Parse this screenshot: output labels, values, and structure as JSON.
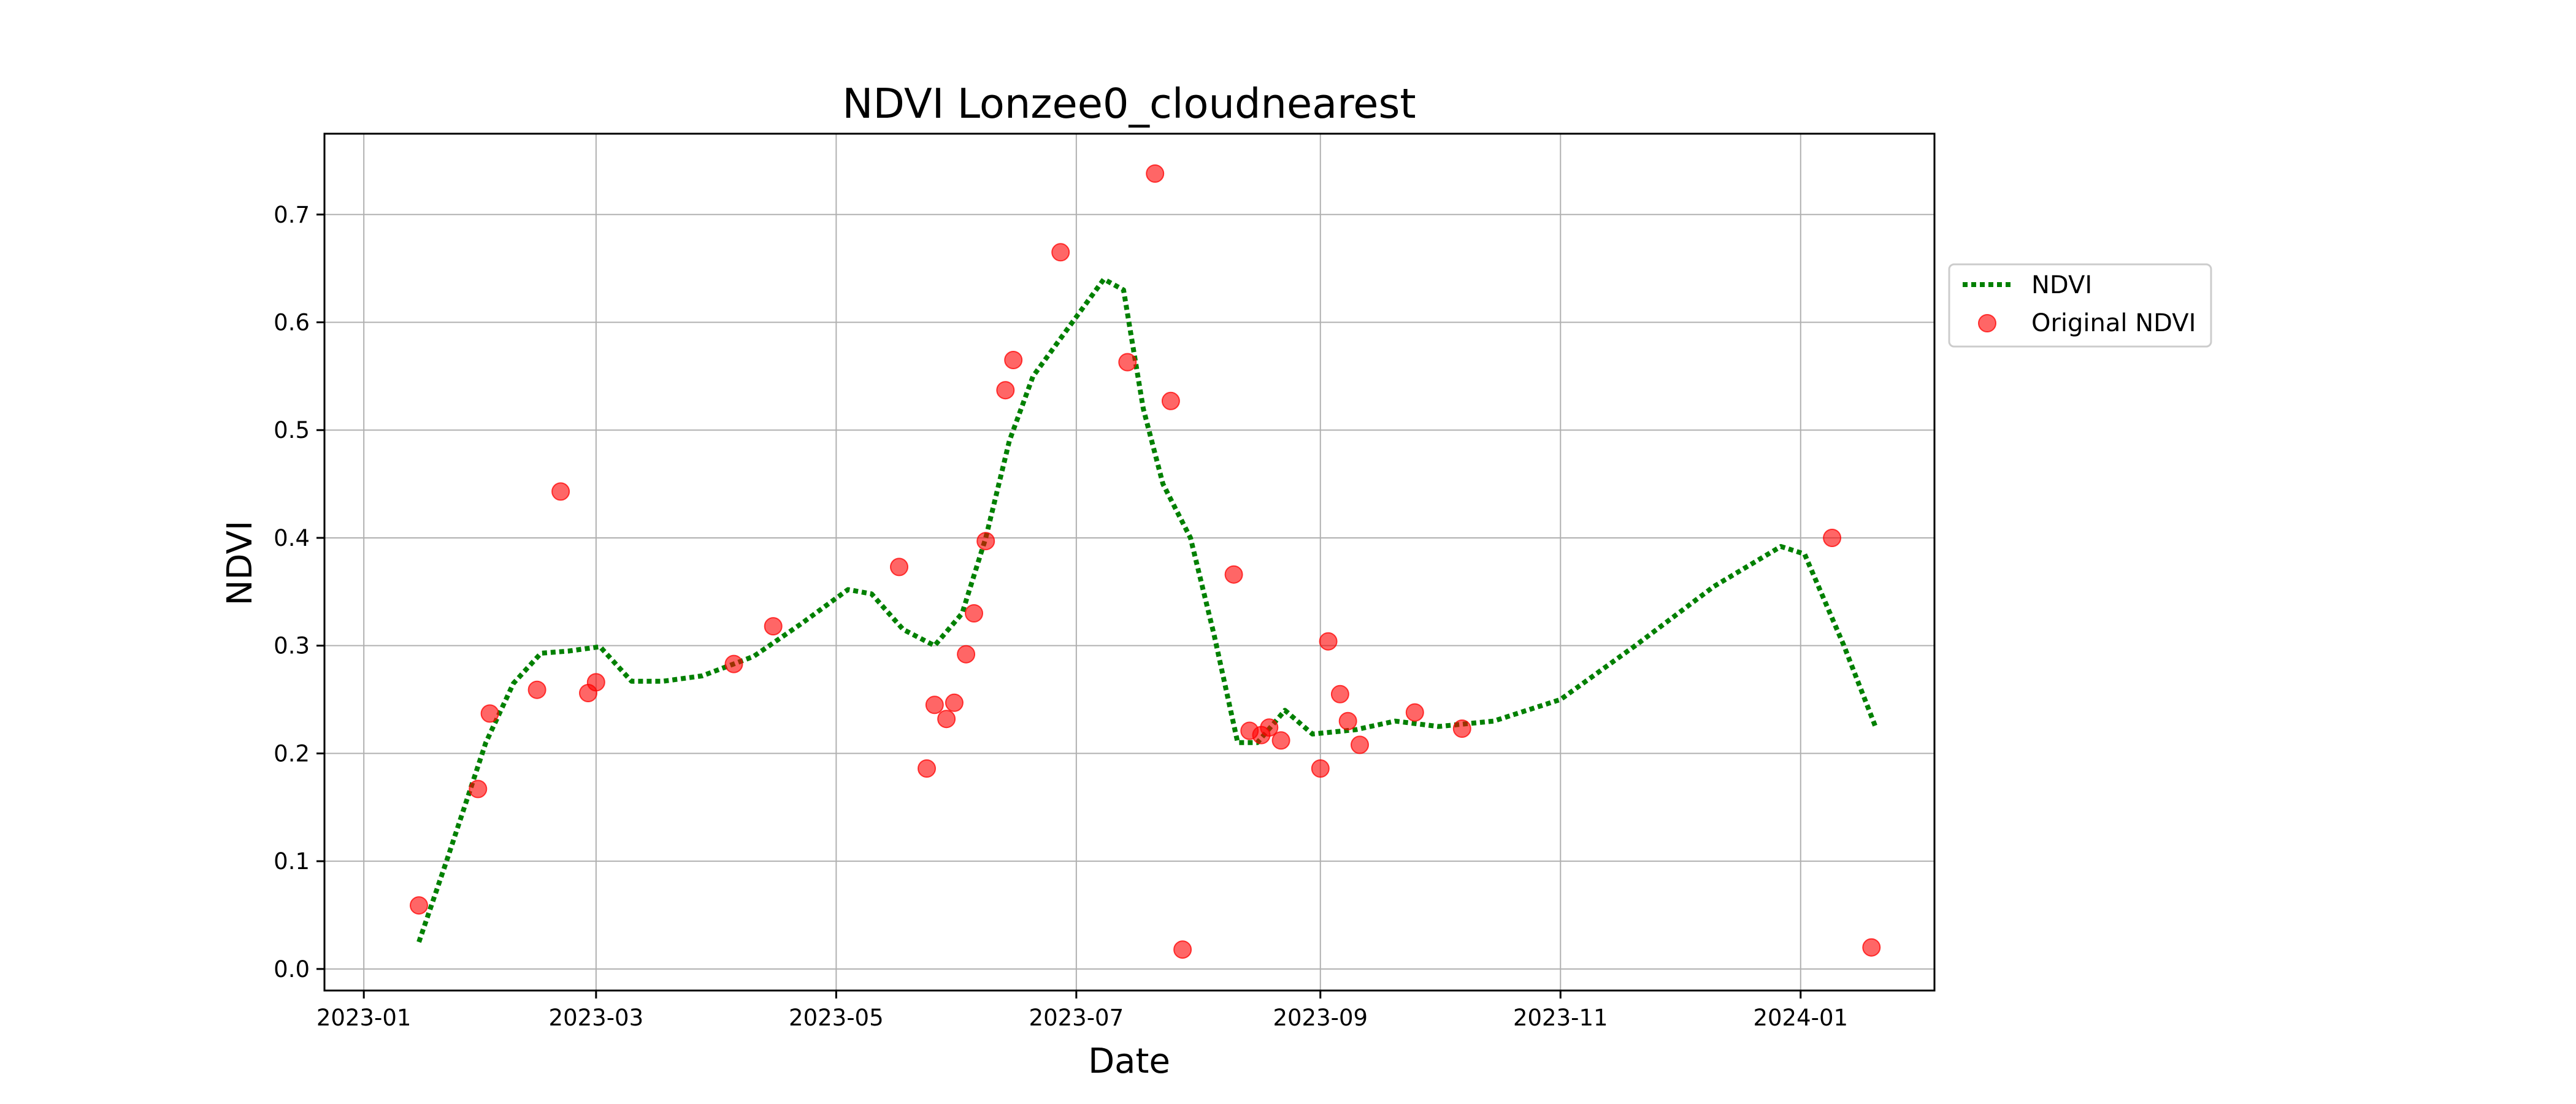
{
  "chart_data": {
    "type": "scatter",
    "title": "NDVI Lonzee0_cloudnearest",
    "xlabel": "Date",
    "ylabel": "NDVI",
    "xlim": [
      "2022-12-22",
      "2024-02-04"
    ],
    "ylim": [
      -0.02,
      0.775
    ],
    "x_ticks": [
      "2023-01",
      "2023-03",
      "2023-05",
      "2023-07",
      "2023-09",
      "2023-11",
      "2024-01"
    ],
    "y_ticks": [
      "0.0",
      "0.1",
      "0.2",
      "0.3",
      "0.4",
      "0.5",
      "0.6",
      "0.7"
    ],
    "grid": true,
    "legend_position": "right-outside",
    "series": [
      {
        "name": "NDVI",
        "kind": "line",
        "style": "dotted",
        "color": "#008000",
        "points": [
          [
            "2023-01-15",
            0.025
          ],
          [
            "2023-01-22",
            0.1
          ],
          [
            "2023-02-01",
            0.21
          ],
          [
            "2023-02-08",
            0.265
          ],
          [
            "2023-02-15",
            0.293
          ],
          [
            "2023-02-22",
            0.295
          ],
          [
            "2023-03-02",
            0.299
          ],
          [
            "2023-03-10",
            0.267
          ],
          [
            "2023-03-18",
            0.267
          ],
          [
            "2023-03-28",
            0.272
          ],
          [
            "2023-04-10",
            0.29
          ],
          [
            "2023-04-22",
            0.32
          ],
          [
            "2023-05-04",
            0.352
          ],
          [
            "2023-05-10",
            0.348
          ],
          [
            "2023-05-18",
            0.315
          ],
          [
            "2023-05-26",
            0.3
          ],
          [
            "2023-06-02",
            0.33
          ],
          [
            "2023-06-08",
            0.4
          ],
          [
            "2023-06-14",
            0.49
          ],
          [
            "2023-06-20",
            0.55
          ],
          [
            "2023-06-30",
            0.6
          ],
          [
            "2023-07-08",
            0.64
          ],
          [
            "2023-07-13",
            0.63
          ],
          [
            "2023-07-18",
            0.52
          ],
          [
            "2023-07-23",
            0.45
          ],
          [
            "2023-07-30",
            0.4
          ],
          [
            "2023-08-05",
            0.31
          ],
          [
            "2023-08-11",
            0.21
          ],
          [
            "2023-08-16",
            0.21
          ],
          [
            "2023-08-23",
            0.24
          ],
          [
            "2023-08-30",
            0.218
          ],
          [
            "2023-09-10",
            0.222
          ],
          [
            "2023-09-20",
            0.23
          ],
          [
            "2023-10-01",
            0.225
          ],
          [
            "2023-10-15",
            0.23
          ],
          [
            "2023-11-01",
            0.25
          ],
          [
            "2023-11-20",
            0.3
          ],
          [
            "2023-12-10",
            0.355
          ],
          [
            "2023-12-27",
            0.392
          ],
          [
            "2024-01-02",
            0.385
          ],
          [
            "2024-01-12",
            0.3
          ],
          [
            "2024-01-20",
            0.225
          ]
        ]
      },
      {
        "name": "Original NDVI",
        "kind": "scatter",
        "color": "#ff0000",
        "points": [
          [
            "2023-01-15",
            0.059
          ],
          [
            "2023-01-30",
            0.167
          ],
          [
            "2023-02-02",
            0.237
          ],
          [
            "2023-02-14",
            0.259
          ],
          [
            "2023-02-20",
            0.443
          ],
          [
            "2023-02-27",
            0.256
          ],
          [
            "2023-03-01",
            0.266
          ],
          [
            "2023-04-05",
            0.283
          ],
          [
            "2023-04-15",
            0.318
          ],
          [
            "2023-05-17",
            0.373
          ],
          [
            "2023-05-24",
            0.186
          ],
          [
            "2023-05-26",
            0.245
          ],
          [
            "2023-05-29",
            0.232
          ],
          [
            "2023-05-31",
            0.247
          ],
          [
            "2023-06-03",
            0.292
          ],
          [
            "2023-06-05",
            0.33
          ],
          [
            "2023-06-08",
            0.397
          ],
          [
            "2023-06-13",
            0.537
          ],
          [
            "2023-06-15",
            0.565
          ],
          [
            "2023-06-27",
            0.665
          ],
          [
            "2023-07-14",
            0.563
          ],
          [
            "2023-07-21",
            0.738
          ],
          [
            "2023-07-25",
            0.527
          ],
          [
            "2023-07-28",
            0.018
          ],
          [
            "2023-08-10",
            0.366
          ],
          [
            "2023-08-14",
            0.221
          ],
          [
            "2023-08-17",
            0.217
          ],
          [
            "2023-08-19",
            0.224
          ],
          [
            "2023-08-22",
            0.212
          ],
          [
            "2023-09-01",
            0.186
          ],
          [
            "2023-09-03",
            0.304
          ],
          [
            "2023-09-06",
            0.255
          ],
          [
            "2023-09-08",
            0.23
          ],
          [
            "2023-09-11",
            0.208
          ],
          [
            "2023-09-25",
            0.238
          ],
          [
            "2023-10-07",
            0.223
          ],
          [
            "2024-01-09",
            0.4
          ],
          [
            "2024-01-19",
            0.02
          ]
        ]
      }
    ]
  }
}
